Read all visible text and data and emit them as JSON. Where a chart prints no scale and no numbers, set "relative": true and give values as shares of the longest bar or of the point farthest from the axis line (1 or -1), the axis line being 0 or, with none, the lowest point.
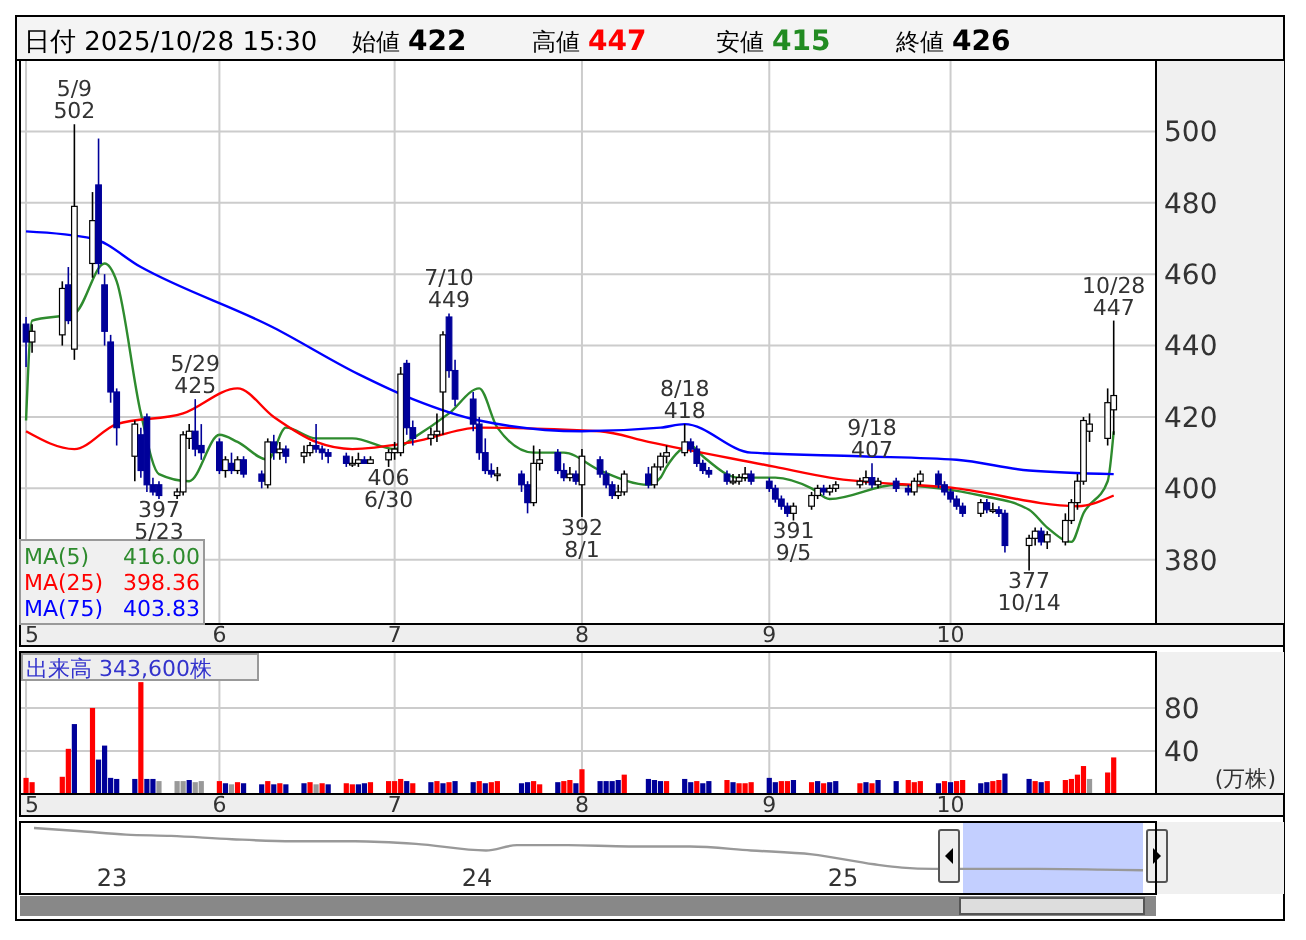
{
  "chart_data": [
    {
      "type": "candlestick",
      "title": "日付 2025/10/28 15:30",
      "annotations": [
        "始値 422",
        "高値 447",
        "安値 415",
        "終値 426",
        {
          "text": "5/9 502",
          "x": "2025-05-09",
          "y": 502
        },
        {
          "text": "397 5/23",
          "x": "2025-05-23",
          "y": 397
        },
        {
          "text": "5/29 425",
          "x": "2025-05-29",
          "y": 425
        },
        {
          "text": "406 6/30",
          "x": "2025-06-30",
          "y": 406
        },
        {
          "text": "7/10 449",
          "x": "2025-07-10",
          "y": 449
        },
        {
          "text": "392 8/1",
          "x": "2025-08-01",
          "y": 392
        },
        {
          "text": "8/18 418",
          "x": "2025-08-18",
          "y": 418
        },
        {
          "text": "391 9/5",
          "x": "2025-09-05",
          "y": 391
        },
        {
          "text": "9/18 407",
          "x": "2025-09-18",
          "y": 407
        },
        {
          "text": "377 10/14",
          "x": "2025-10-14",
          "y": 377
        },
        {
          "text": "10/28 447",
          "x": "2025-10-28",
          "y": 447
        }
      ],
      "x": [
        "2025-05-01",
        "2025-05-02",
        "2025-05-07",
        "2025-05-08",
        "2025-05-09",
        "2025-05-12",
        "2025-05-13",
        "2025-05-14",
        "2025-05-15",
        "2025-05-16",
        "2025-05-19",
        "2025-05-20",
        "2025-05-21",
        "2025-05-22",
        "2025-05-23",
        "2025-05-26",
        "2025-05-27",
        "2025-05-28",
        "2025-05-29",
        "2025-05-30",
        "2025-06-02",
        "2025-06-03",
        "2025-06-04",
        "2025-06-05",
        "2025-06-06",
        "2025-06-09",
        "2025-06-10",
        "2025-06-11",
        "2025-06-12",
        "2025-06-13",
        "2025-06-16",
        "2025-06-17",
        "2025-06-18",
        "2025-06-19",
        "2025-06-20",
        "2025-06-23",
        "2025-06-24",
        "2025-06-25",
        "2025-06-26",
        "2025-06-27",
        "2025-06-30",
        "2025-07-01",
        "2025-07-02",
        "2025-07-03",
        "2025-07-04",
        "2025-07-07",
        "2025-07-08",
        "2025-07-09",
        "2025-07-10",
        "2025-07-11",
        "2025-07-14",
        "2025-07-15",
        "2025-07-16",
        "2025-07-17",
        "2025-07-18",
        "2025-07-22",
        "2025-07-23",
        "2025-07-24",
        "2025-07-25",
        "2025-07-28",
        "2025-07-29",
        "2025-07-30",
        "2025-07-31",
        "2025-08-01",
        "2025-08-04",
        "2025-08-05",
        "2025-08-06",
        "2025-08-07",
        "2025-08-08",
        "2025-08-12",
        "2025-08-13",
        "2025-08-14",
        "2025-08-15",
        "2025-08-18",
        "2025-08-19",
        "2025-08-20",
        "2025-08-21",
        "2025-08-22",
        "2025-08-25",
        "2025-08-26",
        "2025-08-27",
        "2025-08-28",
        "2025-08-29",
        "2025-09-01",
        "2025-09-02",
        "2025-09-03",
        "2025-09-04",
        "2025-09-05",
        "2025-09-08",
        "2025-09-09",
        "2025-09-10",
        "2025-09-11",
        "2025-09-12",
        "2025-09-16",
        "2025-09-17",
        "2025-09-18",
        "2025-09-19",
        "2025-09-22",
        "2025-09-24",
        "2025-09-25",
        "2025-09-26",
        "2025-09-29",
        "2025-09-30",
        "2025-10-01",
        "2025-10-02",
        "2025-10-03",
        "2025-10-06",
        "2025-10-07",
        "2025-10-08",
        "2025-10-09",
        "2025-10-10",
        "2025-10-14",
        "2025-10-15",
        "2025-10-16",
        "2025-10-17",
        "2025-10-20",
        "2025-10-21",
        "2025-10-22",
        "2025-10-23",
        "2025-10-24",
        "2025-10-27",
        "2025-10-28"
      ],
      "ohlc": [
        [
          446,
          448,
          434,
          441
        ],
        [
          441,
          446,
          438,
          444
        ],
        [
          443,
          458,
          440,
          456
        ],
        [
          457,
          462,
          446,
          447
        ],
        [
          439,
          502,
          436,
          479
        ],
        [
          463,
          483,
          459,
          475
        ],
        [
          485,
          498,
          460,
          463
        ],
        [
          457,
          460,
          440,
          444
        ],
        [
          441,
          443,
          424,
          427
        ],
        [
          427,
          428,
          412,
          417
        ],
        [
          409,
          419,
          402,
          418
        ],
        [
          415,
          417,
          403,
          405
        ],
        [
          420,
          421,
          399,
          401
        ],
        [
          401,
          403,
          398,
          399
        ],
        [
          401,
          402,
          397,
          398
        ],
        [
          398,
          400,
          397,
          399
        ],
        [
          399,
          416,
          398,
          415
        ],
        [
          414,
          418,
          411,
          416
        ],
        [
          416,
          425,
          409,
          411
        ],
        [
          412,
          418,
          408,
          410
        ],
        [
          413,
          414,
          404,
          405
        ],
        [
          405,
          409,
          403,
          408
        ],
        [
          407,
          410,
          404,
          405
        ],
        [
          405,
          409,
          404,
          408
        ],
        [
          408,
          409,
          403,
          404
        ],
        [
          404,
          405,
          400,
          402
        ],
        [
          401,
          414,
          400,
          413
        ],
        [
          413,
          415,
          408,
          410
        ],
        [
          410,
          413,
          408,
          411
        ],
        [
          411,
          412,
          407,
          409
        ],
        [
          409,
          412,
          407,
          410
        ],
        [
          410,
          413,
          409,
          412
        ],
        [
          412,
          418,
          410,
          411
        ],
        [
          411,
          412,
          408,
          410
        ],
        [
          410,
          411,
          407,
          409
        ],
        [
          409,
          410,
          406,
          407
        ],
        [
          407,
          409,
          406,
          407
        ],
        [
          407,
          410,
          406,
          408
        ],
        [
          408,
          409,
          407,
          407
        ],
        [
          407,
          409,
          407,
          408
        ],
        [
          408,
          411,
          406,
          410
        ],
        [
          410,
          413,
          408,
          411
        ],
        [
          410,
          434,
          409,
          432
        ],
        [
          435,
          436,
          415,
          417
        ],
        [
          417,
          419,
          412,
          414
        ],
        [
          414,
          417,
          412,
          415
        ],
        [
          415,
          421,
          413,
          416
        ],
        [
          427,
          444,
          415,
          443
        ],
        [
          448,
          449,
          431,
          433
        ],
        [
          433,
          436,
          423,
          425
        ],
        [
          425,
          427,
          416,
          418
        ],
        [
          418,
          420,
          408,
          410
        ],
        [
          410,
          414,
          404,
          405
        ],
        [
          405,
          407,
          403,
          404
        ],
        [
          404,
          406,
          402,
          404
        ],
        [
          404,
          405,
          399,
          401
        ],
        [
          401,
          402,
          393,
          396
        ],
        [
          396,
          412,
          395,
          407
        ],
        [
          407,
          411,
          405,
          408
        ],
        [
          410,
          411,
          404,
          405
        ],
        [
          405,
          407,
          402,
          403
        ],
        [
          403,
          406,
          402,
          404
        ],
        [
          404,
          405,
          401,
          402
        ],
        [
          401,
          411,
          392,
          409
        ],
        [
          408,
          409,
          403,
          404
        ],
        [
          404,
          405,
          400,
          401
        ],
        [
          401,
          402,
          397,
          398
        ],
        [
          398,
          401,
          397,
          399
        ],
        [
          399,
          405,
          398,
          404
        ],
        [
          404,
          406,
          400,
          401
        ],
        [
          401,
          407,
          400,
          406
        ],
        [
          406,
          410,
          405,
          409
        ],
        [
          409,
          412,
          407,
          410
        ],
        [
          410,
          418,
          409,
          413
        ],
        [
          413,
          414,
          410,
          411
        ],
        [
          411,
          412,
          406,
          407
        ],
        [
          407,
          408,
          404,
          405
        ],
        [
          405,
          406,
          403,
          404
        ],
        [
          404,
          405,
          401,
          402
        ],
        [
          402,
          404,
          401,
          402
        ],
        [
          402,
          404,
          401,
          403
        ],
        [
          403,
          406,
          402,
          404
        ],
        [
          404,
          405,
          401,
          402
        ],
        [
          402,
          403,
          399,
          400
        ],
        [
          400,
          401,
          396,
          397
        ],
        [
          397,
          398,
          394,
          395
        ],
        [
          395,
          396,
          392,
          393
        ],
        [
          393,
          396,
          391,
          395
        ],
        [
          395,
          399,
          394,
          398
        ],
        [
          398,
          401,
          397,
          400
        ],
        [
          400,
          401,
          398,
          399
        ],
        [
          399,
          401,
          398,
          400
        ],
        [
          400,
          402,
          399,
          401
        ],
        [
          401,
          403,
          400,
          402
        ],
        [
          402,
          405,
          401,
          403
        ],
        [
          403,
          407,
          400,
          401
        ],
        [
          401,
          403,
          400,
          402
        ],
        [
          402,
          403,
          399,
          400
        ],
        [
          400,
          401,
          398,
          399
        ],
        [
          399,
          403,
          398,
          402
        ],
        [
          402,
          405,
          401,
          404
        ],
        [
          404,
          405,
          400,
          401
        ],
        [
          401,
          402,
          398,
          399
        ],
        [
          399,
          400,
          396,
          397
        ],
        [
          397,
          398,
          394,
          395
        ],
        [
          395,
          396,
          392,
          393
        ],
        [
          393,
          397,
          392,
          396
        ],
        [
          396,
          397,
          393,
          394
        ],
        [
          394,
          396,
          393,
          394
        ],
        [
          394,
          395,
          392,
          393
        ],
        [
          393,
          394,
          382,
          384
        ],
        [
          384,
          387,
          377,
          386
        ],
        [
          386,
          389,
          384,
          388
        ],
        [
          388,
          389,
          384,
          385
        ],
        [
          385,
          388,
          383,
          387
        ],
        [
          385,
          393,
          384,
          391
        ],
        [
          391,
          397,
          390,
          396
        ],
        [
          396,
          404,
          394,
          402
        ],
        [
          402,
          420,
          401,
          419
        ],
        [
          416,
          421,
          413,
          418
        ],
        [
          414,
          428,
          412,
          424
        ],
        [
          422,
          447,
          415,
          426
        ]
      ],
      "series": [
        {
          "name": "MA(5) 416.00",
          "type": "line",
          "color": "#2e8b2e",
          "x": [
            "2025-05-01",
            "2025-05-02",
            "2025-05-09",
            "2025-05-14",
            "2025-05-16",
            "2025-05-20",
            "2025-05-23",
            "2025-05-28",
            "2025-06-02",
            "2025-06-05",
            "2025-06-10",
            "2025-06-13",
            "2025-06-18",
            "2025-06-24",
            "2025-07-01",
            "2025-07-04",
            "2025-07-10",
            "2025-07-15",
            "2025-07-18",
            "2025-07-24",
            "2025-07-29",
            "2025-08-04",
            "2025-08-12",
            "2025-08-14",
            "2025-08-15",
            "2025-08-19",
            "2025-08-21",
            "2025-08-27",
            "2025-09-02",
            "2025-09-08",
            "2025-09-11",
            "2025-09-22",
            "2025-09-29",
            "2025-10-06",
            "2025-10-14",
            "2025-10-17",
            "2025-10-21",
            "2025-10-23",
            "2025-10-27",
            "2025-10-28"
          ],
          "values": [
            419,
            447,
            449,
            463,
            458,
            421,
            404,
            402,
            415,
            413,
            408,
            417,
            414,
            414,
            411,
            414,
            421,
            428,
            417,
            410,
            410,
            405,
            401,
            403,
            406,
            412,
            409,
            403,
            403,
            400,
            397,
            401,
            400,
            398,
            394,
            389,
            385,
            393,
            402,
            416
          ]
        },
        {
          "name": "MA(25) 398.36",
          "type": "line",
          "color": "#ff0000",
          "x": [
            "2025-05-01",
            "2025-05-09",
            "2025-05-16",
            "2025-05-27",
            "2025-06-05",
            "2025-06-11",
            "2025-06-18",
            "2025-06-24",
            "2025-07-04",
            "2025-07-15",
            "2025-08-04",
            "2025-08-12",
            "2025-09-02",
            "2025-09-11",
            "2025-10-02",
            "2025-10-22",
            "2025-10-28"
          ],
          "values": [
            416,
            411,
            418,
            421,
            428,
            420,
            413,
            411,
            413,
            417,
            416,
            413,
            406,
            403,
            400,
            395,
            398
          ]
        },
        {
          "name": "MA(75) 403.83",
          "type": "line",
          "color": "#0000ff",
          "x": [
            "2025-05-01",
            "2025-05-12",
            "2025-05-20",
            "2025-06-11",
            "2025-06-25",
            "2025-07-04",
            "2025-07-15",
            "2025-08-01",
            "2025-08-14",
            "2025-08-18",
            "2025-08-29",
            "2025-09-16",
            "2025-10-02",
            "2025-10-14",
            "2025-10-28"
          ],
          "values": [
            472,
            470,
            462,
            445,
            432,
            425,
            419,
            416,
            417,
            418,
            410,
            409,
            408,
            405,
            404
          ]
        }
      ],
      "xlim": [
        "2025-04-30",
        "2025-11-04"
      ],
      "ylim": [
        362,
        520
      ],
      "yticks": [
        380,
        400,
        420,
        440,
        460,
        480,
        500
      ],
      "xticks": [
        {
          "value": "2025-05-01",
          "label": "5"
        },
        {
          "value": "2025-06-02",
          "label": "6"
        },
        {
          "value": "2025-07-01",
          "label": "7"
        },
        {
          "value": "2025-08-01",
          "label": "8"
        },
        {
          "value": "2025-09-01",
          "label": "9"
        },
        {
          "value": "2025-10-01",
          "label": "10"
        }
      ],
      "grid": true,
      "legend": "bottom left"
    },
    {
      "type": "bar",
      "title": "出来高 343,600株",
      "ylabel": "(万株)",
      "x": [
        "2025-05-01",
        "2025-05-02",
        "2025-05-07",
        "2025-05-08",
        "2025-05-09",
        "2025-05-12",
        "2025-05-13",
        "2025-05-14",
        "2025-05-15",
        "2025-05-16",
        "2025-05-19",
        "2025-05-20",
        "2025-05-21",
        "2025-05-22",
        "2025-05-23",
        "2025-05-26",
        "2025-05-27",
        "2025-05-28",
        "2025-05-29",
        "2025-05-30",
        "2025-06-02",
        "2025-06-03",
        "2025-06-04",
        "2025-06-05",
        "2025-06-06",
        "2025-06-09",
        "2025-06-10",
        "2025-06-11",
        "2025-06-12",
        "2025-06-13",
        "2025-06-16",
        "2025-06-17",
        "2025-06-18",
        "2025-06-19",
        "2025-06-20",
        "2025-06-23",
        "2025-06-24",
        "2025-06-25",
        "2025-06-26",
        "2025-06-27",
        "2025-06-30",
        "2025-07-01",
        "2025-07-02",
        "2025-07-03",
        "2025-07-04",
        "2025-07-07",
        "2025-07-08",
        "2025-07-09",
        "2025-07-10",
        "2025-07-11",
        "2025-07-14",
        "2025-07-15",
        "2025-07-16",
        "2025-07-17",
        "2025-07-18",
        "2025-07-22",
        "2025-07-23",
        "2025-07-24",
        "2025-07-25",
        "2025-07-28",
        "2025-07-29",
        "2025-07-30",
        "2025-07-31",
        "2025-08-01",
        "2025-08-04",
        "2025-08-05",
        "2025-08-06",
        "2025-08-07",
        "2025-08-08",
        "2025-08-12",
        "2025-08-13",
        "2025-08-14",
        "2025-08-15",
        "2025-08-18",
        "2025-08-19",
        "2025-08-20",
        "2025-08-21",
        "2025-08-22",
        "2025-08-25",
        "2025-08-26",
        "2025-08-27",
        "2025-08-28",
        "2025-08-29",
        "2025-09-01",
        "2025-09-02",
        "2025-09-03",
        "2025-09-04",
        "2025-09-05",
        "2025-09-08",
        "2025-09-09",
        "2025-09-10",
        "2025-09-11",
        "2025-09-12",
        "2025-09-16",
        "2025-09-17",
        "2025-09-18",
        "2025-09-19",
        "2025-09-22",
        "2025-09-24",
        "2025-09-25",
        "2025-09-26",
        "2025-09-29",
        "2025-09-30",
        "2025-10-01",
        "2025-10-02",
        "2025-10-03",
        "2025-10-06",
        "2025-10-07",
        "2025-10-08",
        "2025-10-09",
        "2025-10-10",
        "2025-10-14",
        "2025-10-15",
        "2025-10-16",
        "2025-10-17",
        "2025-10-20",
        "2025-10-21",
        "2025-10-22",
        "2025-10-23",
        "2025-10-24",
        "2025-10-27",
        "2025-10-28"
      ],
      "values": [
        15,
        11,
        16,
        42,
        65,
        80,
        32,
        45,
        15,
        14,
        14,
        104,
        14,
        14,
        12,
        12,
        12,
        13,
        11,
        12,
        12,
        10,
        9,
        11,
        10,
        9,
        12,
        9,
        10,
        9,
        10,
        11,
        9,
        10,
        9,
        10,
        9,
        9,
        10,
        11,
        12,
        12,
        14,
        12,
        10,
        11,
        12,
        10,
        11,
        12,
        11,
        12,
        10,
        11,
        12,
        10,
        11,
        12,
        9,
        11,
        12,
        13,
        10,
        23,
        12,
        12,
        12,
        13,
        18,
        14,
        13,
        12,
        12,
        14,
        11,
        12,
        10,
        12,
        13,
        11,
        10,
        10,
        11,
        15,
        11,
        12,
        12,
        13,
        11,
        12,
        10,
        11,
        12,
        10,
        11,
        10,
        13,
        12,
        13,
        11,
        12,
        10,
        12,
        11,
        12,
        13,
        10,
        11,
        12,
        13,
        19,
        14,
        12,
        11,
        12,
        13,
        14,
        18,
        26,
        14,
        20,
        34
      ],
      "colors": [
        "#ff0000",
        "#ff0000",
        "#ff0000",
        "#ff0000",
        "#000099",
        "#ff0000",
        "#000099",
        "#000099",
        "#000099",
        "#000099",
        "#000099",
        "#ff0000",
        "#000099",
        "#000099",
        "#999999",
        "#999999",
        "#999999",
        "#000099",
        "#999999",
        "#999999",
        "#ff0000",
        "#000099",
        "#999999",
        "#ff0000",
        "#000099",
        "#000099",
        "#ff0000",
        "#000099",
        "#ff0000",
        "#000099",
        "#000099",
        "#ff0000",
        "#999999",
        "#ff0000",
        "#000099",
        "#ff0000",
        "#ff0000",
        "#000099",
        "#000099",
        "#ff0000",
        "#ff0000",
        "#ff0000",
        "#ff0000",
        "#000099",
        "#ff0000",
        "#000099",
        "#ff0000",
        "#000099",
        "#ff0000",
        "#000099",
        "#000099",
        "#ff0000",
        "#000099",
        "#ff0000",
        "#ff0000",
        "#000099",
        "#000099",
        "#ff0000",
        "#ff0000",
        "#000099",
        "#ff0000",
        "#ff0000",
        "#000099",
        "#ff0000",
        "#000099",
        "#000099",
        "#000099",
        "#000099",
        "#ff0000",
        "#000099",
        "#000099",
        "#000099",
        "#ff0000",
        "#000099",
        "#000099",
        "#ff0000",
        "#000099",
        "#000099",
        "#ff0000",
        "#000099",
        "#ff0000",
        "#ff0000",
        "#ff0000",
        "#000099",
        "#000099",
        "#ff0000",
        "#ff0000",
        "#000099",
        "#ff0000",
        "#000099",
        "#ff0000",
        "#000099",
        "#000099",
        "#ff0000",
        "#000099",
        "#ff0000",
        "#000099",
        "#000099",
        "#ff0000",
        "#ff0000",
        "#ff0000",
        "#000099",
        "#ff0000",
        "#000099",
        "#ff0000",
        "#ff0000",
        "#000099",
        "#000099",
        "#ff0000",
        "#ff0000",
        "#000099",
        "#000099",
        "#ff0000",
        "#000099",
        "#ff0000",
        "#ff0000",
        "#ff0000",
        "#ff0000",
        "#ff0000",
        "#999999",
        "#ff0000",
        "#ff0000"
      ],
      "xlim": [
        "2025-04-30",
        "2025-11-04"
      ],
      "ylim": [
        0,
        132
      ],
      "yticks": [
        40,
        80
      ],
      "xticks": [
        {
          "value": "2025-05-01",
          "label": "5"
        },
        {
          "value": "2025-06-02",
          "label": "6"
        },
        {
          "value": "2025-07-01",
          "label": "7"
        },
        {
          "value": "2025-08-01",
          "label": "8"
        },
        {
          "value": "2025-09-01",
          "label": "9"
        },
        {
          "value": "2025-10-01",
          "label": "10"
        }
      ],
      "grid": true
    },
    {
      "type": "line",
      "relative": true,
      "color": "#999999",
      "x": [
        "2022-10-15",
        "2022-12-01",
        "2023-01-15",
        "2023-03-01",
        "2023-05-01",
        "2023-07-01",
        "2023-09-01",
        "2023-11-01",
        "2024-01-10",
        "2024-02-10",
        "2024-04-01",
        "2024-06-01",
        "2024-08-01",
        "2024-10-01",
        "2024-12-01",
        "2025-02-01",
        "2025-03-01",
        "2025-04-01",
        "2025-05-15",
        "2025-07-15",
        "2025-09-15",
        "2025-10-28"
      ],
      "values": [
        1,
        0.95,
        0.9,
        0.88,
        0.83,
        0.8,
        0.8,
        0.76,
        0.66,
        0.74,
        0.74,
        0.72,
        0.72,
        0.66,
        0.6,
        0.45,
        0.4,
        0.38,
        0.38,
        0.38,
        0.37,
        0.36
      ],
      "xlim": [
        "2022-10-01",
        "2025-11-10"
      ],
      "xticks": [
        {
          "value": "2023-01-01",
          "label": "23"
        },
        {
          "value": "2024-01-01",
          "label": "24"
        },
        {
          "value": "2025-01-01",
          "label": "25"
        }
      ],
      "bands": [
        {
          "axis": "x",
          "from": "2025-05-01",
          "to": "2025-10-28",
          "color": "#aabbff"
        }
      ]
    }
  ]
}
